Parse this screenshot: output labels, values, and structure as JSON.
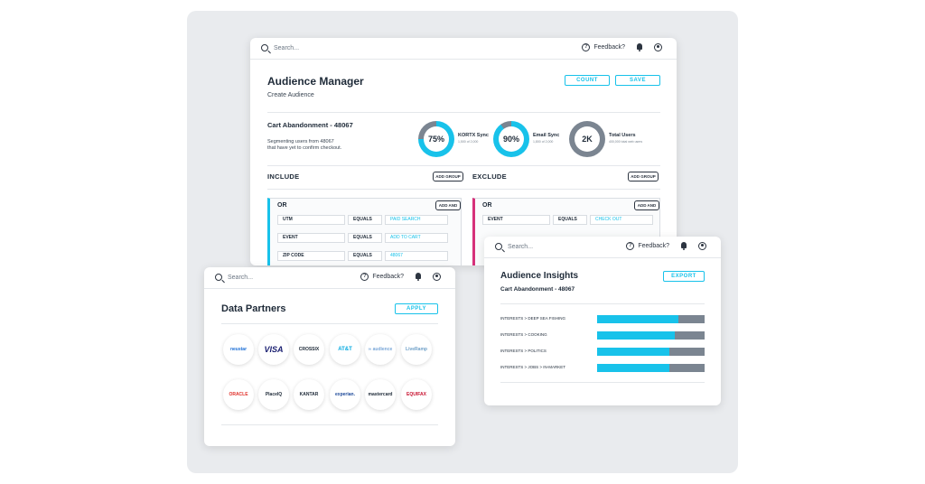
{
  "topbar": {
    "search_placeholder": "Search...",
    "feedback_label": "Feedback?"
  },
  "audience_manager": {
    "title": "Audience Manager",
    "subtitle": "Create Audience",
    "count_label": "COUNT",
    "save_label": "SAVE",
    "audience_name": "Cart Abandonment - 48067",
    "audience_desc_1": "Segmenting users from 48067",
    "audience_desc_2": "that have yet to confirm checkout.",
    "stats": [
      {
        "value": "75%",
        "label": "KORTX Sync",
        "sub": "1,500 of 2,000",
        "percent": 75,
        "color": "#18c2ea"
      },
      {
        "value": "90%",
        "label": "Email Sync",
        "sub": "1,800 of 2,000",
        "percent": 90,
        "color": "#18c2ea"
      },
      {
        "value": "2K",
        "label": "Total Users",
        "sub": "400,000 total web users",
        "percent": 100,
        "color": "#7b8591"
      }
    ],
    "include_label": "INCLUDE",
    "exclude_label": "EXCLUDE",
    "add_group_label": "ADD GROUP",
    "add_and_label": "ADD AND",
    "or_label": "OR",
    "include_rules": [
      {
        "field": "UTM",
        "op": "EQUALS",
        "value": "PAID SEARCH"
      },
      {
        "field": "EVENT",
        "op": "EQUALS",
        "value": "ADD TO CART"
      },
      {
        "field": "ZIP CODE",
        "op": "EQUALS",
        "value": "48067"
      }
    ],
    "exclude_rules": [
      {
        "field": "EVENT",
        "op": "EQUALS",
        "value": "CHECK OUT"
      }
    ],
    "include_color": "#18c2ea",
    "exclude_color": "#d6317a"
  },
  "data_partners": {
    "title": "Data Partners",
    "apply_label": "APPLY",
    "logos": [
      {
        "name": "neustar",
        "text": "neustar",
        "color": "#1d6fd6"
      },
      {
        "name": "visa",
        "text": "VISA",
        "color": "#1a1f71"
      },
      {
        "name": "crossix",
        "text": "CROSSIX",
        "color": "#1e2a38"
      },
      {
        "name": "att",
        "text": "AT&T",
        "color": "#00a8e0"
      },
      {
        "name": "placeholder",
        "text": "∞ audience",
        "color": "#7aa7d8"
      },
      {
        "name": "liveramp",
        "text": "LiveRamp",
        "color": "#6fa0c8"
      },
      {
        "name": "oracle",
        "text": "ORACLE",
        "color": "#e0312b"
      },
      {
        "name": "placeiq",
        "text": "PlaceIQ",
        "color": "#1e2a38"
      },
      {
        "name": "kantar",
        "text": "KANTAR",
        "color": "#1e2a38"
      },
      {
        "name": "experian",
        "text": "experian.",
        "color": "#1e4a9a"
      },
      {
        "name": "mastercard",
        "text": "mastercard",
        "color": "#1e2a38"
      },
      {
        "name": "equifax",
        "text": "EQUIFAX",
        "color": "#c8102e"
      }
    ]
  },
  "insights": {
    "title": "Audience Insights",
    "export_label": "EXPORT",
    "audience_name": "Cart Abandonment - 48067",
    "bars": [
      {
        "label": "INTERESTS > DEEP SEA FISHING",
        "value": 0.76
      },
      {
        "label": "INTERESTS > COOKING",
        "value": 0.72
      },
      {
        "label": "INTERESTS > POLITICS",
        "value": 0.67
      },
      {
        "label": "INTERESTS > JOBS > IN-MARKET",
        "value": 0.67
      }
    ]
  }
}
